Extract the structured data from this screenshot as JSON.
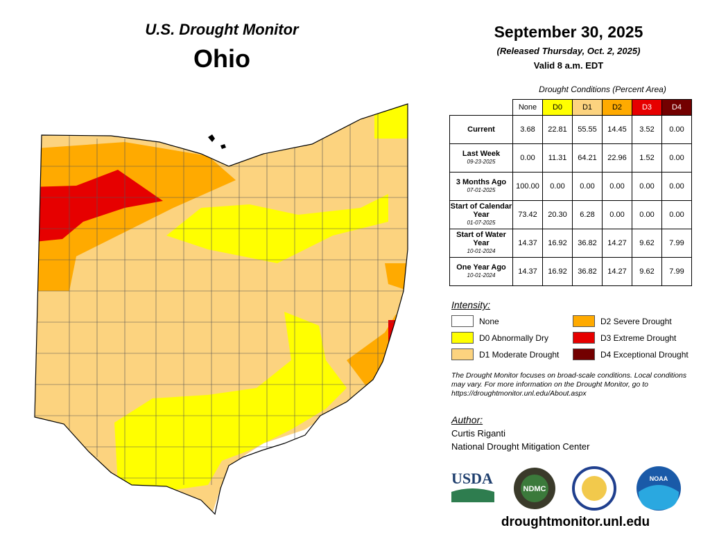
{
  "header": {
    "title": "U.S. Drought Monitor",
    "state": "Ohio",
    "date": "September 30, 2025",
    "released": "(Released Thursday, Oct. 2, 2025)",
    "valid": "Valid 8 a.m. EDT"
  },
  "table": {
    "caption": "Drought Conditions (Percent Area)",
    "columns": [
      {
        "label": "None",
        "color": "#ffffff"
      },
      {
        "label": "D0",
        "color": "#ffff00"
      },
      {
        "label": "D1",
        "color": "#fcd37f"
      },
      {
        "label": "D2",
        "color": "#ffaa00"
      },
      {
        "label": "D3",
        "color": "#e60000"
      },
      {
        "label": "D4",
        "color": "#730000"
      }
    ],
    "rows": [
      {
        "label": "Current",
        "values": [
          "3.68",
          "22.81",
          "55.55",
          "14.45",
          "3.52",
          "0.00"
        ]
      },
      {
        "label": "Last Week",
        "date": "09-23-2025",
        "values": [
          "0.00",
          "11.31",
          "64.21",
          "22.96",
          "1.52",
          "0.00"
        ]
      },
      {
        "label": "3 Months Ago",
        "date": "07-01-2025",
        "values": [
          "100.00",
          "0.00",
          "0.00",
          "0.00",
          "0.00",
          "0.00"
        ]
      },
      {
        "label": "Start of Calendar Year",
        "date": "01-07-2025",
        "values": [
          "73.42",
          "20.30",
          "6.28",
          "0.00",
          "0.00",
          "0.00"
        ]
      },
      {
        "label": "Start of Water Year",
        "date": "10-01-2024",
        "values": [
          "14.37",
          "16.92",
          "36.82",
          "14.27",
          "9.62",
          "7.99"
        ]
      },
      {
        "label": "One Year Ago",
        "date": "10-01-2024",
        "values": [
          "14.37",
          "16.92",
          "36.82",
          "14.27",
          "9.62",
          "7.99"
        ]
      }
    ]
  },
  "legend": {
    "title": "Intensity:",
    "items": [
      {
        "label": "None",
        "color": "#ffffff"
      },
      {
        "label": "D2 Severe Drought",
        "color": "#ffaa00"
      },
      {
        "label": "D0 Abnormally Dry",
        "color": "#ffff00"
      },
      {
        "label": "D3 Extreme Drought",
        "color": "#e60000"
      },
      {
        "label": "D1 Moderate Drought",
        "color": "#fcd37f"
      },
      {
        "label": "D4 Exceptional Drought",
        "color": "#730000"
      }
    ]
  },
  "note": "The Drought Monitor focuses on broad-scale conditions. Local conditions may vary. For more information on the Drought Monitor, go to https://droughtmonitor.unl.edu/About.aspx",
  "author": {
    "heading": "Author:",
    "name": "Curtis Riganti",
    "org": "National Drought Mitigation Center"
  },
  "logos": [
    "USDA",
    "NDMC",
    "NOAA"
  ],
  "url": "droughtmonitor.unl.edu"
}
